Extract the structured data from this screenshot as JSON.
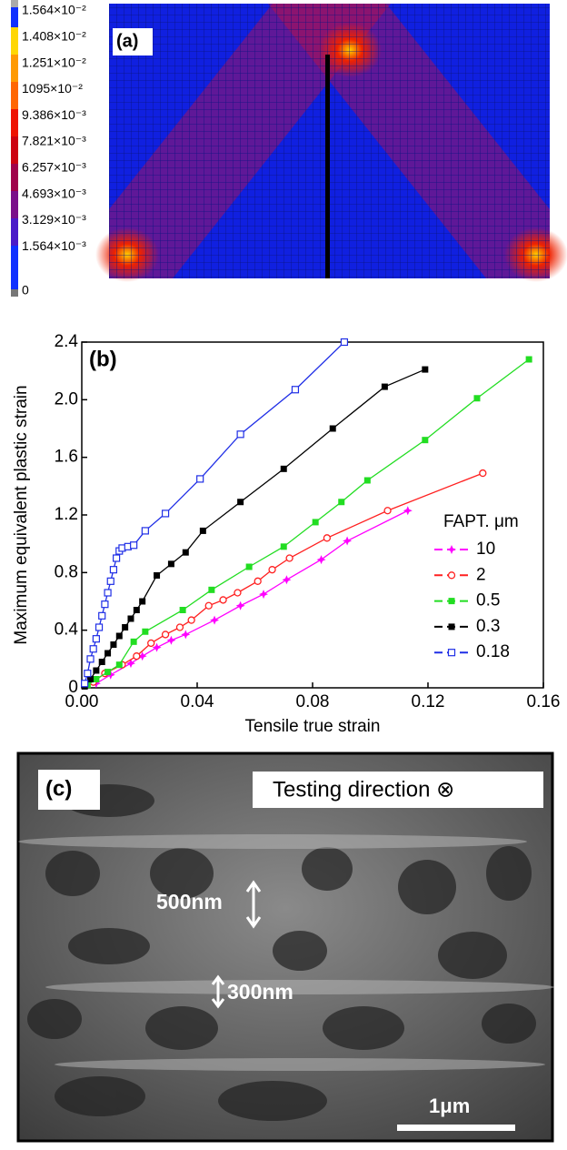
{
  "panel_a": {
    "label": "(a)",
    "colorbar": [
      "1.564×10⁻²",
      "1.408×10⁻²",
      "1.251×10⁻²",
      "1095×10⁻²",
      "9.386×10⁻³",
      "7.821×10⁻³",
      "6.257×10⁻³",
      "4.693×10⁻³",
      "3.129×10⁻³",
      "1.564×10⁻³",
      "0"
    ]
  },
  "chart_data": {
    "type": "line",
    "panel_label": "(b)",
    "x_label": "Tensile true strain",
    "y_label": "Maximum equivalent plastic strain",
    "xlim": [
      0,
      0.16
    ],
    "ylim": [
      0,
      2.4
    ],
    "xticks": [
      {
        "value": 0,
        "label": "0.00"
      },
      0.04,
      0.08,
      0.12,
      0.16
    ],
    "yticks": [
      0,
      0.4,
      0.8,
      1.2,
      1.6,
      {
        "value": 2,
        "label": "2.0"
      },
      2.4
    ],
    "legend_title": "FAPT. μm",
    "legend": "right",
    "series": [
      {
        "name": "10",
        "color": "#ff00ff",
        "marker": "star",
        "x": [
          0.005,
          0.01,
          0.017,
          0.021,
          0.026,
          0.031,
          0.036,
          0.046,
          0.055,
          0.063,
          0.071,
          0.083,
          0.092,
          0.113
        ],
        "values": [
          0.03,
          0.09,
          0.17,
          0.22,
          0.28,
          0.33,
          0.37,
          0.47,
          0.57,
          0.65,
          0.75,
          0.89,
          1.02,
          1.23
        ]
      },
      {
        "name": "2",
        "color": "#ff2020",
        "marker": "circle-open",
        "x": [
          0.004,
          0.008,
          0.014,
          0.019,
          0.024,
          0.029,
          0.034,
          0.038,
          0.044,
          0.049,
          0.054,
          0.061,
          0.066,
          0.072,
          0.085,
          0.106,
          0.139
        ],
        "values": [
          0.04,
          0.1,
          0.16,
          0.22,
          0.31,
          0.37,
          0.42,
          0.47,
          0.57,
          0.61,
          0.66,
          0.74,
          0.82,
          0.9,
          1.04,
          1.23,
          1.49
        ]
      },
      {
        "name": "0.5",
        "color": "#22dd22",
        "marker": "square",
        "x": [
          0.002,
          0.005,
          0.009,
          0.013,
          0.018,
          0.022,
          0.035,
          0.045,
          0.058,
          0.07,
          0.081,
          0.09,
          0.099,
          0.119,
          0.137,
          0.155
        ],
        "values": [
          0.02,
          0.06,
          0.11,
          0.16,
          0.32,
          0.39,
          0.54,
          0.68,
          0.84,
          0.98,
          1.15,
          1.29,
          1.44,
          1.72,
          2.01,
          2.28
        ]
      },
      {
        "name": "0.3",
        "color": "#000000",
        "marker": "square",
        "x": [
          0.001,
          0.003,
          0.005,
          0.007,
          0.009,
          0.011,
          0.013,
          0.015,
          0.017,
          0.019,
          0.021,
          0.026,
          0.031,
          0.036,
          0.042,
          0.055,
          0.07,
          0.087,
          0.105,
          0.119
        ],
        "values": [
          0.01,
          0.06,
          0.12,
          0.18,
          0.24,
          0.3,
          0.36,
          0.42,
          0.48,
          0.54,
          0.6,
          0.78,
          0.86,
          0.94,
          1.09,
          1.29,
          1.52,
          1.8,
          2.09,
          2.21
        ]
      },
      {
        "name": "0.18",
        "color": "#1f2ee6",
        "marker": "square-open",
        "x": [
          0.001,
          0.002,
          0.003,
          0.004,
          0.005,
          0.006,
          0.007,
          0.008,
          0.009,
          0.01,
          0.011,
          0.012,
          0.013,
          0.014,
          0.016,
          0.018,
          0.022,
          0.029,
          0.041,
          0.055,
          0.074,
          0.091
        ],
        "values": [
          0.03,
          0.1,
          0.2,
          0.27,
          0.34,
          0.42,
          0.5,
          0.58,
          0.66,
          0.74,
          0.82,
          0.9,
          0.95,
          0.97,
          0.98,
          0.99,
          1.09,
          1.21,
          1.45,
          1.76,
          2.07,
          2.4
        ]
      }
    ]
  },
  "panel_c": {
    "label": "(c)",
    "direction": "Testing direction ⊗",
    "measure_1": "500nm",
    "measure_2": "300nm",
    "scale_bar": "1μm"
  }
}
